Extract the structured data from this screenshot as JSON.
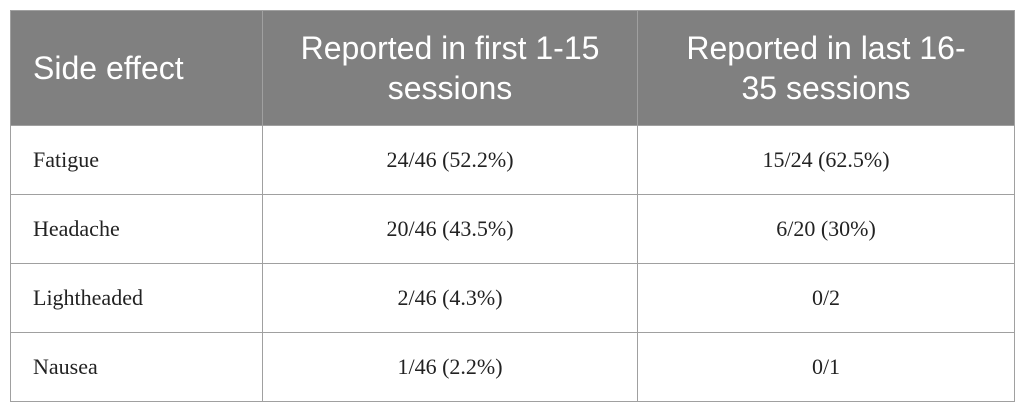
{
  "table": {
    "header": [
      "Side effect",
      "Reported in first 1-15 sessions",
      "Reported in last 16-35 sessions"
    ],
    "rows": [
      [
        "Fatigue",
        "24/46 (52.2%)",
        "15/24 (62.5%)"
      ],
      [
        "Headache",
        "20/46 (43.5%)",
        "6/20 (30%)"
      ],
      [
        "Lightheaded",
        "2/46 (4.3%)",
        "0/2"
      ],
      [
        "Nausea",
        "1/46 (2.2%)",
        "0/1"
      ]
    ]
  }
}
